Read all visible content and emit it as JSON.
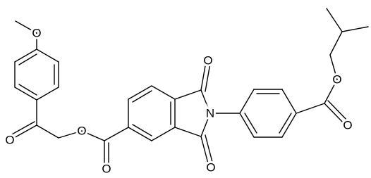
{
  "atoms": [
    {
      "label": "O"
    },
    {
      "label": "O"
    },
    {
      "label": "O"
    },
    {
      "label": "O"
    },
    {
      "label": "O"
    },
    {
      "label": "N"
    },
    {
      "label": "O"
    },
    {
      "label": "O"
    },
    {
      "label": "O"
    }
  ]
}
